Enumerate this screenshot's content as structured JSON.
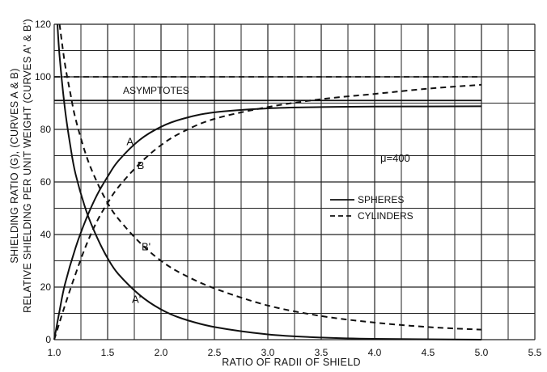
{
  "chart_data": {
    "type": "line",
    "xlabel": "RATIO OF RADII OF SHIELD",
    "ylabel_lines": [
      "SHIELDING RATIO (G), (CURVES A & B)",
      "RELATIVE SHIELDING PER UNIT WEIGHT (CURVES A' & B')"
    ],
    "xlim": [
      1.0,
      5.5
    ],
    "ylim": [
      0,
      120
    ],
    "x_ticks": [
      "1.0",
      "1.5",
      "2.0",
      "2.5",
      "3.0",
      "3.5",
      "4.0",
      "4.5",
      "5.0",
      "5.5"
    ],
    "y_ticks": [
      "0",
      "20",
      "40",
      "60",
      "80",
      "100",
      "120"
    ],
    "grid": true,
    "legend_position": "right",
    "legend": [
      {
        "label": "SPHERES",
        "style": "solid"
      },
      {
        "label": "CYLINDERS",
        "style": "dashed"
      }
    ],
    "annotations": {
      "asymptotes": "ASYMPTOTES",
      "mu": "μ=400"
    },
    "asymptotes": [
      {
        "y": 100,
        "style": "dashed",
        "x_range": [
          1.0,
          5.0
        ]
      },
      {
        "y": 91,
        "style": "solid",
        "x_range": [
          1.0,
          5.0
        ]
      }
    ],
    "series": [
      {
        "name": "A",
        "style": "solid",
        "points": [
          [
            1.0,
            0
          ],
          [
            1.05,
            11
          ],
          [
            1.1,
            21
          ],
          [
            1.2,
            35
          ],
          [
            1.3,
            46
          ],
          [
            1.4,
            55
          ],
          [
            1.5,
            62
          ],
          [
            1.6,
            68
          ],
          [
            1.8,
            76
          ],
          [
            2.0,
            81
          ],
          [
            2.2,
            84
          ],
          [
            2.5,
            86.5
          ],
          [
            3.0,
            88
          ],
          [
            3.5,
            88.5
          ],
          [
            4.0,
            88.7
          ],
          [
            5.0,
            88.8
          ]
        ]
      },
      {
        "name": "B",
        "style": "dashed",
        "points": [
          [
            1.0,
            0
          ],
          [
            1.1,
            13
          ],
          [
            1.2,
            25
          ],
          [
            1.3,
            36
          ],
          [
            1.4,
            45
          ],
          [
            1.5,
            52
          ],
          [
            1.6,
            58
          ],
          [
            1.8,
            67
          ],
          [
            2.0,
            74
          ],
          [
            2.2,
            79
          ],
          [
            2.5,
            84
          ],
          [
            3.0,
            88.5
          ],
          [
            3.5,
            91.5
          ],
          [
            4.0,
            93.5
          ],
          [
            4.5,
            95.5
          ],
          [
            5.0,
            97
          ]
        ]
      },
      {
        "name": "A'",
        "style": "solid",
        "points": [
          [
            1.03,
            120
          ],
          [
            1.05,
            108
          ],
          [
            1.1,
            88
          ],
          [
            1.15,
            74
          ],
          [
            1.2,
            63
          ],
          [
            1.3,
            49
          ],
          [
            1.4,
            39
          ],
          [
            1.5,
            31
          ],
          [
            1.6,
            25
          ],
          [
            1.8,
            17
          ],
          [
            2.0,
            11.5
          ],
          [
            2.2,
            8
          ],
          [
            2.5,
            4.8
          ],
          [
            3.0,
            2
          ],
          [
            3.5,
            0.8
          ],
          [
            4.0,
            0.3
          ],
          [
            5.0,
            0
          ]
        ]
      },
      {
        "name": "B'",
        "style": "dashed",
        "points": [
          [
            1.05,
            120
          ],
          [
            1.1,
            105
          ],
          [
            1.15,
            94
          ],
          [
            1.2,
            84
          ],
          [
            1.3,
            70
          ],
          [
            1.4,
            60
          ],
          [
            1.5,
            52
          ],
          [
            1.6,
            46
          ],
          [
            1.8,
            37
          ],
          [
            2.0,
            30
          ],
          [
            2.2,
            25
          ],
          [
            2.5,
            19.5
          ],
          [
            3.0,
            13
          ],
          [
            3.5,
            9
          ],
          [
            4.0,
            6.5
          ],
          [
            4.5,
            4.8
          ],
          [
            5.0,
            3.8
          ]
        ]
      }
    ],
    "curve_labels": [
      {
        "text": "A",
        "x": 1.71,
        "y": 74
      },
      {
        "text": "B",
        "x": 1.81,
        "y": 65
      },
      {
        "text": "B'",
        "x": 1.86,
        "y": 34
      },
      {
        "text": "A'",
        "x": 1.77,
        "y": 14
      }
    ]
  }
}
